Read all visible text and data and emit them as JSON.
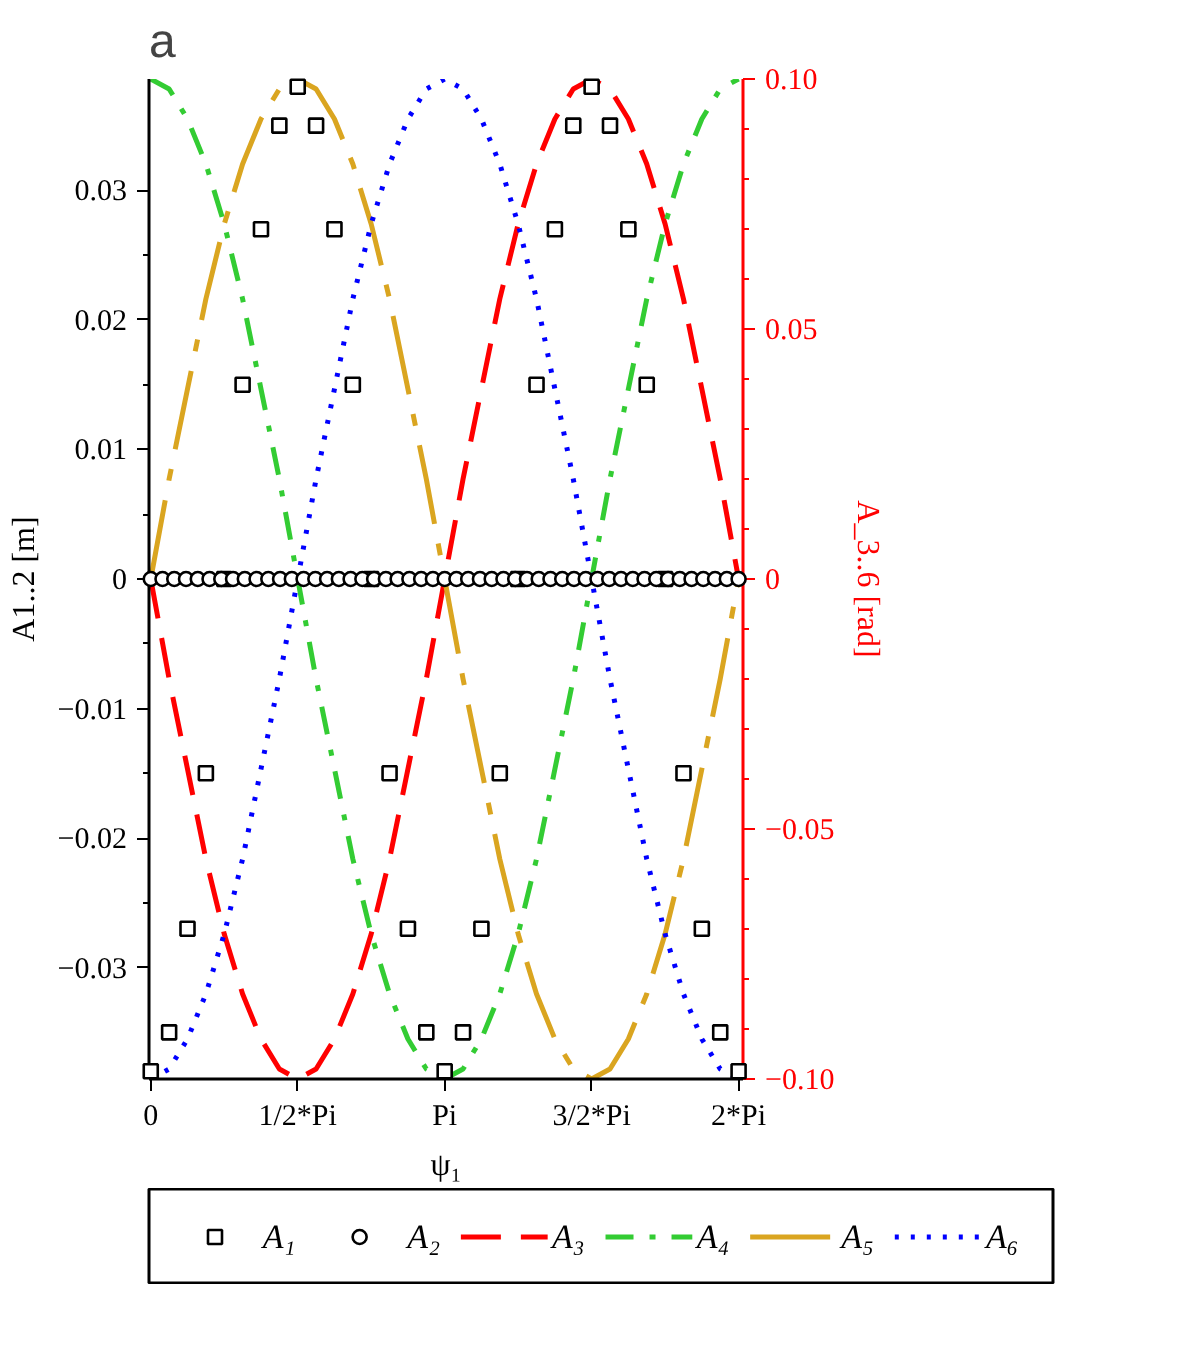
{
  "chart_data": {
    "type": "line",
    "xlabel": "ψ₁",
    "ylabel": "A1..2 [m]",
    "y2label": "A_3..6 [rad]",
    "annotations": [
      "a"
    ],
    "xlim": [
      -0.006,
      2.015
    ],
    "xticks": [
      0,
      {
        "value": 0.5,
        "label": "1/2*Pi"
      },
      {
        "value": 1,
        "label": "Pi"
      },
      {
        "value": 1.5,
        "label": "3/2*Pi"
      },
      {
        "value": 2,
        "label": "2*Pi"
      }
    ],
    "ylim": [
      -0.0386,
      0.0386
    ],
    "yticks": [
      {
        "value": -0.03,
        "label": "−0.03"
      },
      {
        "value": -0.02,
        "label": "−0.02"
      },
      {
        "value": -0.01,
        "label": "−0.01"
      },
      0,
      0.01,
      0.02,
      0.03
    ],
    "y2lim": [
      -0.1,
      0.1
    ],
    "y2ticks": [
      {
        "value": -0.1,
        "label": "−0.10"
      },
      {
        "value": -0.05,
        "label": "−0.05"
      },
      0,
      0.05,
      {
        "value": 0.1,
        "label": "0.10"
      }
    ],
    "grid": false,
    "legend": "bottom",
    "series": [
      {
        "name": "A₁",
        "type": "scatter",
        "marker": "square",
        "color": "#000000",
        "x": [
          0,
          0.0625,
          0.125,
          0.1875,
          0.25,
          0.3125,
          0.375,
          0.4375,
          0.5,
          0.5625,
          0.625,
          0.6875,
          0.75,
          0.8125,
          0.875,
          0.9375,
          1,
          1.0625,
          1.125,
          1.1875,
          1.25,
          1.3125,
          1.375,
          1.4375,
          1.5,
          1.5625,
          1.625,
          1.6875,
          1.75,
          1.8125,
          1.875,
          1.9375,
          2
        ],
        "values": [
          -0.038,
          -0.035,
          -0.027,
          -0.015,
          0,
          0.015,
          0.027,
          0.035,
          0.038,
          0.035,
          0.027,
          0.015,
          0,
          -0.015,
          -0.027,
          -0.035,
          -0.038,
          -0.035,
          -0.027,
          -0.015,
          0,
          0.015,
          0.027,
          0.035,
          0.038,
          0.035,
          0.027,
          0.015,
          0,
          -0.015,
          -0.027,
          -0.035,
          -0.038
        ]
      },
      {
        "name": "A₂",
        "type": "scatter",
        "marker": "circle",
        "color": "#000000",
        "x": [
          0,
          0.04,
          0.08,
          0.12,
          0.16,
          0.2,
          0.24,
          0.28,
          0.32,
          0.36,
          0.4,
          0.44,
          0.48,
          0.52,
          0.56,
          0.6,
          0.64,
          0.68,
          0.72,
          0.76,
          0.8,
          0.84,
          0.88,
          0.92,
          0.96,
          1,
          1.04,
          1.08,
          1.12,
          1.16,
          1.2,
          1.24,
          1.28,
          1.32,
          1.36,
          1.4,
          1.44,
          1.48,
          1.52,
          1.56,
          1.6,
          1.64,
          1.68,
          1.72,
          1.76,
          1.8,
          1.84,
          1.88,
          1.92,
          1.96,
          2
        ],
        "values": [
          0,
          0,
          0,
          0,
          0,
          0,
          0,
          0,
          0,
          0,
          0,
          0,
          0,
          0,
          0,
          0,
          0,
          0,
          0,
          0,
          0,
          0,
          0,
          0,
          0,
          0,
          0,
          0,
          0,
          0,
          0,
          0,
          0,
          0,
          0,
          0,
          0,
          0,
          0,
          0,
          0,
          0,
          0,
          0,
          0,
          0,
          0,
          0,
          0,
          0,
          0
        ]
      },
      {
        "name": "A₃",
        "axis": "y2",
        "line_style": "dashed",
        "color": "#ff0000",
        "values": [
          0,
          -0.02,
          -0.038,
          -0.056,
          -0.071,
          -0.083,
          -0.092,
          -0.098,
          -0.1,
          -0.098,
          -0.092,
          -0.083,
          -0.071,
          -0.056,
          -0.038,
          -0.02,
          0,
          0.02,
          0.038,
          0.056,
          0.071,
          0.083,
          0.092,
          0.098,
          0.1,
          0.098,
          0.092,
          0.083,
          0.071,
          0.056,
          0.038,
          0.02,
          0
        ]
      },
      {
        "name": "A₄",
        "axis": "y2",
        "line_style": "dashdot",
        "color": "#33cc33",
        "values": [
          0.1,
          0.098,
          0.092,
          0.083,
          0.071,
          0.056,
          0.038,
          0.02,
          0,
          -0.02,
          -0.038,
          -0.056,
          -0.071,
          -0.083,
          -0.092,
          -0.098,
          -0.1,
          -0.098,
          -0.092,
          -0.083,
          -0.071,
          -0.056,
          -0.038,
          -0.02,
          0,
          0.02,
          0.038,
          0.056,
          0.071,
          0.083,
          0.092,
          0.098,
          0.1
        ]
      },
      {
        "name": "A₅",
        "axis": "y2",
        "line_style": "longdash",
        "color": "#daa520",
        "values": [
          0,
          0.02,
          0.038,
          0.056,
          0.071,
          0.083,
          0.092,
          0.098,
          0.1,
          0.098,
          0.092,
          0.083,
          0.071,
          0.056,
          0.038,
          0.02,
          0,
          -0.02,
          -0.038,
          -0.056,
          -0.071,
          -0.083,
          -0.092,
          -0.098,
          -0.1,
          -0.098,
          -0.092,
          -0.083,
          -0.071,
          -0.056,
          -0.038,
          -0.02,
          0
        ]
      },
      {
        "name": "A₆",
        "axis": "y2",
        "line_style": "dotted",
        "color": "#0000ff",
        "values": [
          -0.1,
          -0.098,
          -0.092,
          -0.083,
          -0.071,
          -0.056,
          -0.038,
          -0.02,
          0,
          0.02,
          0.038,
          0.056,
          0.071,
          0.083,
          0.092,
          0.098,
          0.1,
          0.098,
          0.092,
          0.083,
          0.071,
          0.056,
          0.038,
          0.02,
          0,
          -0.02,
          -0.038,
          -0.056,
          -0.071,
          -0.083,
          -0.092,
          -0.098,
          -0.1
        ]
      }
    ],
    "x": [
      0,
      0.0625,
      0.125,
      0.1875,
      0.25,
      0.3125,
      0.375,
      0.4375,
      0.5,
      0.5625,
      0.625,
      0.6875,
      0.75,
      0.8125,
      0.875,
      0.9375,
      1,
      1.0625,
      1.125,
      1.1875,
      1.25,
      1.3125,
      1.375,
      1.4375,
      1.5,
      1.5625,
      1.625,
      1.6875,
      1.75,
      1.8125,
      1.875,
      1.9375,
      2
    ]
  }
}
